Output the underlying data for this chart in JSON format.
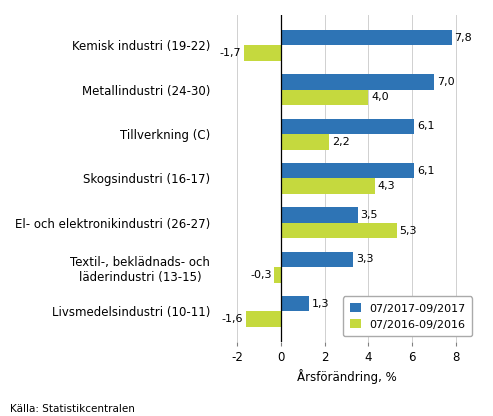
{
  "categories": [
    "Kemisk industri (19-22)",
    "Metallindustri (24-30)",
    "Tillverkning (C)",
    "Skogsindustri (16-17)",
    "El- och elektronikindustri (26-27)",
    "Textil-, beklädnads- och\nläderindustri (13-15)",
    "Livsmedelsindustri (10-11)"
  ],
  "series1_values": [
    7.8,
    7.0,
    6.1,
    6.1,
    3.5,
    3.3,
    1.3
  ],
  "series2_values": [
    -1.7,
    4.0,
    2.2,
    4.3,
    5.3,
    -0.3,
    -1.6
  ],
  "series1_color": "#2E74B5",
  "series2_color": "#C5D93E",
  "series1_label": "07/2017-09/2017",
  "series2_label": "07/2016-09/2016",
  "xlabel": "Årsförändring, %",
  "source": "Källa: Statistikcentralen",
  "xlim": [
    -3,
    9
  ],
  "xticks": [
    -2,
    0,
    2,
    4,
    6,
    8
  ],
  "bar_height": 0.35,
  "label_fontsize": 8.5,
  "tick_fontsize": 8.5,
  "value_fontsize": 8.0
}
